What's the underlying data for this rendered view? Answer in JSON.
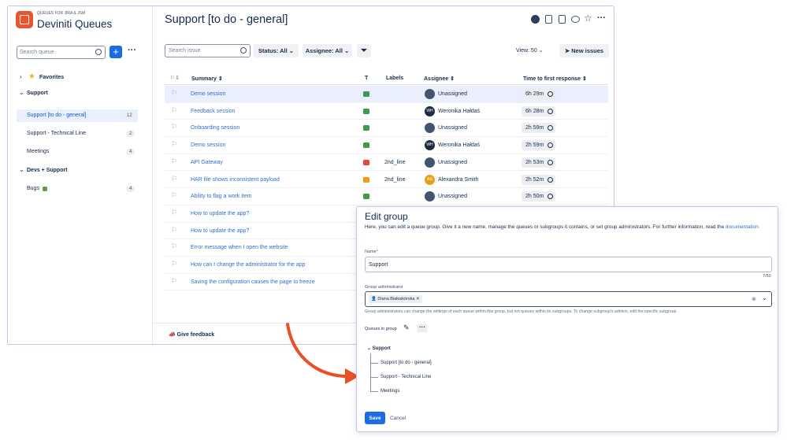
{
  "app": {
    "subtitle": "QUEUES FOR JIRA & JSM",
    "title": "Deviniti Queues",
    "search_placeholder": "Search queue"
  },
  "sidebar": {
    "groups": [
      {
        "label": "Favorites"
      },
      {
        "label": "Support",
        "queues": [
          {
            "label": "Support [to do - general]",
            "count": 12
          },
          {
            "label": "Support - Technical Line",
            "count": 2
          },
          {
            "label": "Meetings",
            "count": 4
          }
        ]
      },
      {
        "label": "Devs + Support",
        "queues": [
          {
            "label": "Bugs",
            "count": 4
          }
        ]
      }
    ],
    "feedback": "Give feedback"
  },
  "queue": {
    "title": "Support [to do - general]",
    "search_placeholder": "Search issue",
    "status_filter": "Status: All",
    "assignee_filter": "Assignee: All",
    "view": "View: 50",
    "new_issues": "New issues",
    "columns": [
      "Summary",
      "T",
      "Labels",
      "Assignee",
      "Time to first response"
    ],
    "rows": [
      {
        "summary": "Demo session",
        "assignee": "Unassigned",
        "time": "6h 29m"
      },
      {
        "summary": "Feedback session",
        "assignee": "Weronika Hałdaś",
        "initials": "WH",
        "time": "6h 28m"
      },
      {
        "summary": "Onboarding session",
        "assignee": "Unassigned",
        "time": "2h 59m"
      },
      {
        "summary": "Demo session",
        "assignee": "Weronika Hałdaś",
        "initials": "WH",
        "time": "2h 59m"
      },
      {
        "summary": "API Gateway",
        "label": "2nd_line",
        "assignee": "Unassigned",
        "time": "2h 53m"
      },
      {
        "summary": "HAR file shows inconsistent payload",
        "label": "2nd_line",
        "assignee": "Alexandra Smith",
        "initials": "AS",
        "time": "2h 52m"
      },
      {
        "summary": "Ability to flag a work item",
        "assignee": "Unassigned",
        "time": "2h 50m"
      },
      {
        "summary": "How to update the app?"
      },
      {
        "summary": "How to update the app?"
      },
      {
        "summary": "Error message when I open the website"
      },
      {
        "summary": "How can I change the administrator for the app"
      },
      {
        "summary": "Saving the configuration causes the page to freeze"
      }
    ]
  },
  "dialog": {
    "title": "Edit group",
    "description": "Here, you can edit a queue group. Give it a new name, manage the queues or subgroups it contains, or set group administrators. For further information, read the",
    "doc_link": "documentation.",
    "name_label": "Name",
    "required": "*",
    "name_value": "Support",
    "name_counter": "7/50",
    "admin_label": "Group administrator",
    "admin_chip": "Diana Białoskórska",
    "admin_help": "Group administrators can change the settings of each queue within this group, but not queues within its subgroups. To change subgroup's admins, edit the specific subgroup.",
    "queues_label": "Queues in group",
    "tree_root": "Support",
    "tree_children": [
      "Support [to do - general]",
      "Support - Technical Line",
      "Meetings"
    ],
    "save": "Save",
    "cancel": "Cancel"
  }
}
